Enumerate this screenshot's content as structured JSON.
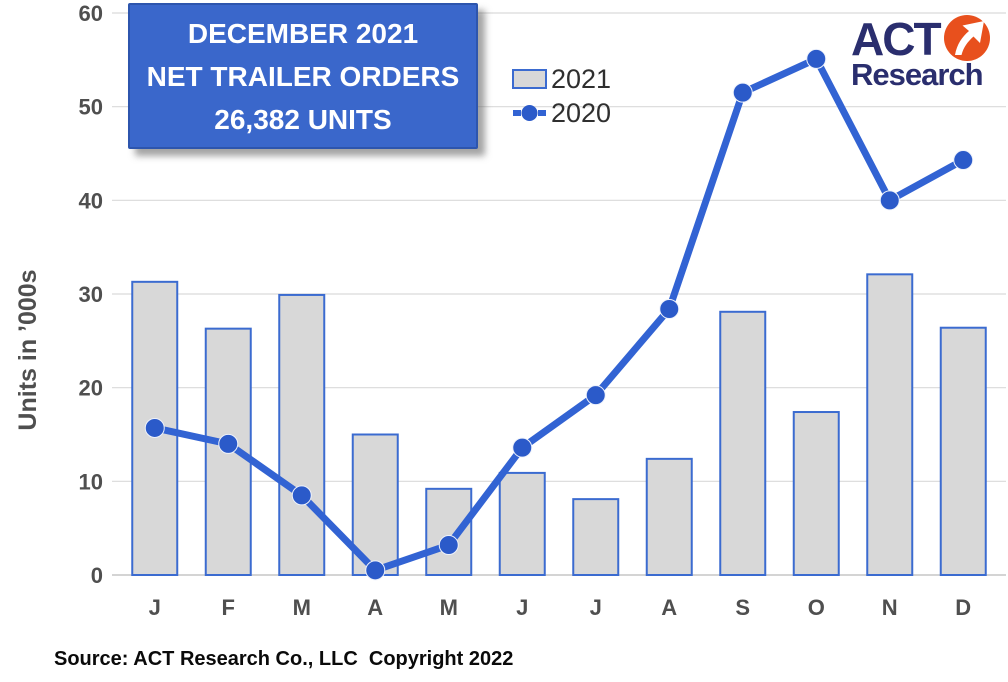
{
  "title_box": {
    "line1": "DECEMBER 2021",
    "line2": "NET TRAILER ORDERS",
    "line3": "26,382 UNITS",
    "bg": "#3a67cb",
    "border": "#2d55ad",
    "text_color": "#ffffff"
  },
  "legend": {
    "items": [
      {
        "label": "2021",
        "marker": "bar-swatch"
      },
      {
        "label": "2020",
        "marker": "dash-dot-line"
      }
    ]
  },
  "logo": {
    "line1": "ACT",
    "line2": "Research",
    "navy": "#2a2e6e",
    "orange": "#e8501d",
    "icon": "arrow-up-right-icon"
  },
  "footer": {
    "source": "Source: ACT Research Co., LLC  Copyright 2022"
  },
  "chart_data": {
    "type": "bar",
    "subtype": "bar-and-line-combo",
    "categories": [
      "J",
      "F",
      "M",
      "A",
      "M",
      "J",
      "J",
      "A",
      "S",
      "O",
      "N",
      "D"
    ],
    "series": [
      {
        "name": "2021",
        "type": "bar",
        "values": [
          31.3,
          26.3,
          29.9,
          15.0,
          9.2,
          10.9,
          8.1,
          12.4,
          28.1,
          17.4,
          32.1,
          26.4
        ]
      },
      {
        "name": "2020",
        "type": "line",
        "values": [
          15.7,
          14.0,
          8.5,
          0.5,
          3.2,
          13.6,
          19.2,
          28.4,
          51.5,
          55.1,
          40.0,
          44.3
        ]
      }
    ],
    "title": "DECEMBER 2021 NET TRAILER ORDERS 26,382 UNITS",
    "xlabel": "",
    "ylabel": "Units in ’000s",
    "ylim": [
      0,
      60
    ],
    "yticks": [
      0,
      10,
      20,
      30,
      40,
      50,
      60
    ],
    "grid": true,
    "legend_position": "top-center-left",
    "colors": {
      "bar_fill": "#d8d8d8",
      "bar_border": "#3b6bd0",
      "line": "#3263d3",
      "marker": "#2b5ac9",
      "grid": "#d9d9d9",
      "baseline": "#c6c6c6",
      "axis_text": "#4f4f4f"
    }
  }
}
